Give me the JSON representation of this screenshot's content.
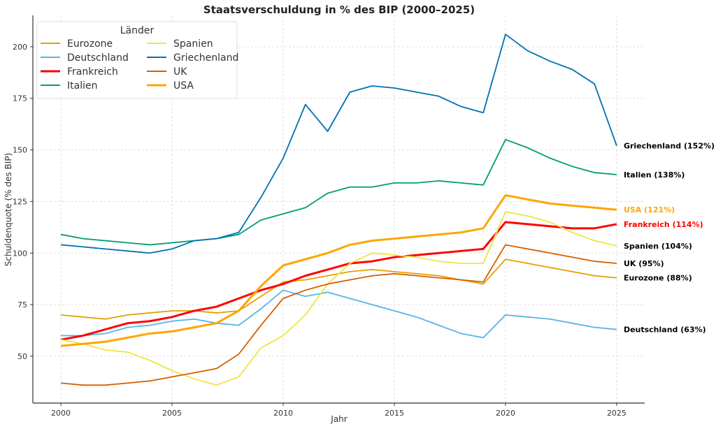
{
  "chart_data": {
    "type": "line",
    "title": "Staatsverschuldung in % des BIP (2000–2025)",
    "xlabel": "Jahr",
    "ylabel": "Schuldenquote (% des BIP)",
    "xlim": [
      1998.74,
      2026.26
    ],
    "ylim": [
      27.3,
      215.2
    ],
    "xticks": [
      2000,
      2005,
      2010,
      2015,
      2020,
      2025
    ],
    "yticks": [
      50,
      75,
      100,
      125,
      150,
      175,
      200
    ],
    "grid": true,
    "legend": {
      "title": "Länder",
      "placement": "top-left",
      "columns": 2
    },
    "x": [
      2000,
      2001,
      2002,
      2003,
      2004,
      2005,
      2006,
      2007,
      2008,
      2009,
      2010,
      2011,
      2012,
      2013,
      2014,
      2015,
      2016,
      2017,
      2018,
      2019,
      2020,
      2021,
      2022,
      2023,
      2024,
      2025
    ],
    "series": [
      {
        "name": "Eurozone",
        "color": "#E69F00",
        "bold": false,
        "label": "Eurozone (88%)",
        "label_color": "#000000",
        "values": [
          70,
          69,
          68,
          70,
          71,
          72,
          72,
          71,
          72,
          79,
          86,
          87,
          89,
          91,
          92,
          91,
          90,
          89,
          87,
          85,
          97,
          95,
          93,
          91,
          89,
          88
        ]
      },
      {
        "name": "Deutschland",
        "color": "#56B4E9",
        "bold": false,
        "label": "Deutschland (63%)",
        "label_color": "#000000",
        "values": [
          60,
          60,
          61,
          64,
          65,
          67,
          68,
          66,
          65,
          73,
          82,
          79,
          81,
          78,
          75,
          72,
          69,
          65,
          61,
          59,
          70,
          69,
          68,
          66,
          64,
          63
        ]
      },
      {
        "name": "Frankreich",
        "color": "#FF0000",
        "bold": true,
        "label": "Frankreich (114%)",
        "label_color": "#FF0000",
        "values": [
          58,
          60,
          63,
          66,
          67,
          69,
          72,
          74,
          78,
          82,
          85,
          89,
          92,
          95,
          96,
          98,
          99,
          100,
          101,
          102,
          115,
          114,
          113,
          112,
          112,
          114
        ]
      },
      {
        "name": "Italien",
        "color": "#009E73",
        "bold": false,
        "label": "Italien (138%)",
        "label_color": "#000000",
        "values": [
          109,
          107,
          106,
          105,
          104,
          105,
          106,
          107,
          109,
          116,
          119,
          122,
          129,
          132,
          132,
          134,
          134,
          135,
          134,
          133,
          155,
          151,
          146,
          142,
          139,
          138
        ]
      },
      {
        "name": "Spanien",
        "color": "#F0E442",
        "bold": false,
        "label": "Spanien (104%)",
        "label_color": "#000000",
        "values": [
          58,
          56,
          53,
          52,
          48,
          43,
          39,
          36,
          40,
          54,
          60,
          70,
          85,
          95,
          100,
          99,
          98,
          96,
          95,
          95,
          120,
          118,
          115,
          110,
          106,
          103.5
        ]
      },
      {
        "name": "Griechenland",
        "color": "#0072B2",
        "bold": false,
        "label": "Griechenland (152%)",
        "label_color": "#000000",
        "values": [
          104,
          103,
          102,
          101,
          100,
          102,
          106,
          107,
          110,
          127,
          146,
          172,
          159,
          178,
          181,
          180,
          178,
          176,
          171,
          168,
          206,
          198,
          193,
          189,
          182,
          152
        ]
      },
      {
        "name": "UK",
        "color": "#D55E00",
        "bold": false,
        "label": "UK (95%)",
        "label_color": "#000000",
        "values": [
          37,
          36,
          36,
          37,
          38,
          40,
          42,
          44,
          51,
          65,
          78,
          82,
          85,
          87,
          89,
          90,
          89,
          88,
          87,
          86,
          104,
          102,
          100,
          98,
          96,
          95
        ]
      },
      {
        "name": "USA",
        "color": "#FFA500",
        "bold": true,
        "label": "USA (121%)",
        "label_color": "#FFA500",
        "values": [
          55,
          56,
          57,
          59,
          61,
          62,
          64,
          66,
          72,
          84,
          94,
          97,
          100,
          104,
          106,
          107,
          108,
          109,
          110,
          112,
          128,
          126,
          124,
          123,
          122,
          121
        ]
      }
    ]
  }
}
